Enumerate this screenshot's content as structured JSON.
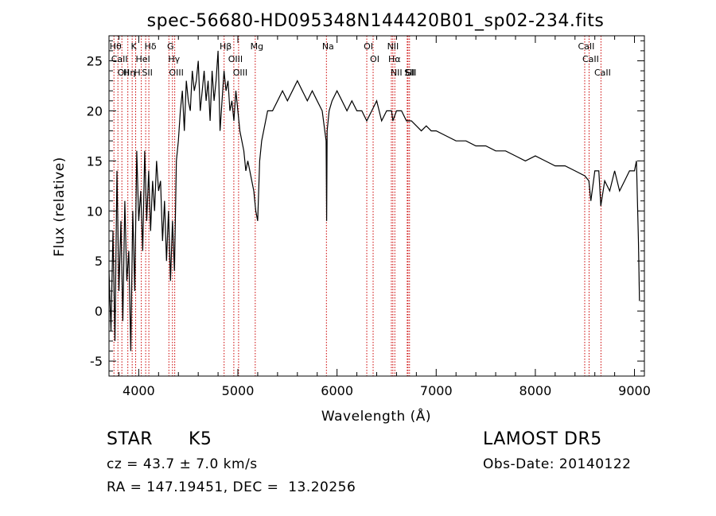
{
  "chart_data": {
    "type": "line",
    "title": "spec-56680-HD095348N144420B01_sp02-234.fits",
    "xlabel": "Wavelength (Å)",
    "ylabel": "Flux (relative)",
    "xlim": [
      3700,
      9100
    ],
    "ylim": [
      -6.5,
      27.5
    ],
    "xticks": [
      4000,
      5000,
      6000,
      7000,
      8000,
      9000
    ],
    "yticks": [
      -5,
      0,
      5,
      10,
      15,
      20,
      25
    ],
    "grid": false,
    "series": [
      {
        "x": [
          3700,
          3720,
          3740,
          3760,
          3780,
          3800,
          3820,
          3840,
          3860,
          3880,
          3900,
          3920,
          3940,
          3960,
          3980,
          4000,
          4020,
          4040,
          4060,
          4080,
          4100,
          4120,
          4140,
          4160,
          4180,
          4200,
          4220,
          4240,
          4260,
          4280,
          4300,
          4320,
          4340,
          4360,
          4380,
          4400,
          4420,
          4440,
          4460,
          4480,
          4500,
          4520,
          4540,
          4560,
          4580,
          4600,
          4620,
          4640,
          4660,
          4680,
          4700,
          4720,
          4740,
          4760,
          4780,
          4800,
          4820,
          4840,
          4860,
          4880,
          4900,
          4920,
          4940,
          4960,
          4980,
          5000,
          5020,
          5040,
          5060,
          5080,
          5100,
          5120,
          5140,
          5160,
          5180,
          5200,
          5220,
          5240,
          5260,
          5280,
          5300,
          5350,
          5400,
          5450,
          5500,
          5550,
          5600,
          5650,
          5700,
          5750,
          5800,
          5850,
          5890,
          5895,
          5900,
          5920,
          5950,
          6000,
          6050,
          6100,
          6150,
          6200,
          6250,
          6300,
          6350,
          6400,
          6450,
          6500,
          6550,
          6563,
          6600,
          6650,
          6700,
          6750,
          6800,
          6850,
          6900,
          6950,
          7000,
          7100,
          7200,
          7300,
          7400,
          7500,
          7600,
          7700,
          7800,
          7900,
          8000,
          8100,
          8200,
          8300,
          8400,
          8500,
          8540,
          8560,
          8600,
          8640,
          8660,
          8700,
          8750,
          8800,
          8850,
          8900,
          8950,
          9000,
          9020,
          9040,
          9050
        ],
        "y": [
          4,
          -2,
          8,
          -3,
          14,
          2,
          9,
          -1,
          11,
          3,
          6,
          -4,
          10,
          2,
          16,
          9,
          12,
          6,
          16,
          9,
          14,
          8,
          13,
          10,
          15,
          12,
          13,
          7,
          11,
          5,
          10,
          3,
          9,
          4,
          15,
          17,
          20,
          22,
          18,
          23,
          21,
          20,
          24,
          22,
          23,
          25,
          20,
          22,
          24,
          21,
          23,
          19,
          24,
          21,
          23,
          26,
          18,
          21,
          24,
          22,
          23,
          20,
          21,
          19,
          22,
          20,
          18,
          17,
          16,
          14,
          15,
          14,
          13,
          12,
          10,
          9,
          15,
          17,
          18,
          19,
          20,
          20,
          21,
          22,
          21,
          22,
          23,
          22,
          21,
          22,
          21,
          20,
          17,
          9,
          18,
          20,
          21,
          22,
          21,
          20,
          21,
          20,
          20,
          19,
          20,
          21,
          19,
          20,
          20,
          19,
          20,
          20,
          19,
          19,
          18.5,
          18,
          18.5,
          18,
          18,
          17.5,
          17,
          17,
          16.5,
          16.5,
          16,
          16,
          15.5,
          15,
          15.5,
          15,
          14.5,
          14.5,
          14,
          13.5,
          13,
          11,
          14,
          14,
          10.5,
          13,
          12,
          14,
          12,
          13,
          14,
          14,
          15,
          7,
          1
        ]
      }
    ],
    "lines": [
      {
        "x": 3750,
        "label": "Hθ"
      },
      {
        "x": 3790,
        "label": "CaII"
      },
      {
        "x": 3830,
        "label": "OII"
      },
      {
        "x": 3890,
        "label": "Hη"
      },
      {
        "x": 3934,
        "label": "K"
      },
      {
        "x": 3969,
        "label": "H"
      },
      {
        "x": 4026,
        "label": "HeI"
      },
      {
        "x": 4070,
        "label": "SII"
      },
      {
        "x": 4102,
        "label": "Hδ"
      },
      {
        "x": 4304,
        "label": "G"
      },
      {
        "x": 4340,
        "label": "Hγ"
      },
      {
        "x": 4363,
        "label": "OIII"
      },
      {
        "x": 4861,
        "label": "Hβ"
      },
      {
        "x": 4959,
        "label": "OIII"
      },
      {
        "x": 5007,
        "label": "OIII"
      },
      {
        "x": 5175,
        "label": "Mg"
      },
      {
        "x": 5893,
        "label": "Na"
      },
      {
        "x": 6300,
        "label": "OI"
      },
      {
        "x": 6364,
        "label": "OI"
      },
      {
        "x": 6548,
        "label": "NII"
      },
      {
        "x": 6563,
        "label": "Hα"
      },
      {
        "x": 6583,
        "label": "NII"
      },
      {
        "x": 6708,
        "label": "Li"
      },
      {
        "x": 6716,
        "label": "SII"
      },
      {
        "x": 6731,
        "label": "SII"
      },
      {
        "x": 8498,
        "label": "CaII"
      },
      {
        "x": 8542,
        "label": "CaII"
      },
      {
        "x": 8662,
        "label": "CaII"
      }
    ],
    "line_color": "#cc0000"
  },
  "info": {
    "object_class": "STAR",
    "subclass": "K5",
    "survey": "LAMOST DR5",
    "redshift": "cz = 43.7 ± 7.0 km/s",
    "obs_date": "Obs-Date: 20140122",
    "coords": "RA = 147.19451, DEC =  13.20256"
  }
}
